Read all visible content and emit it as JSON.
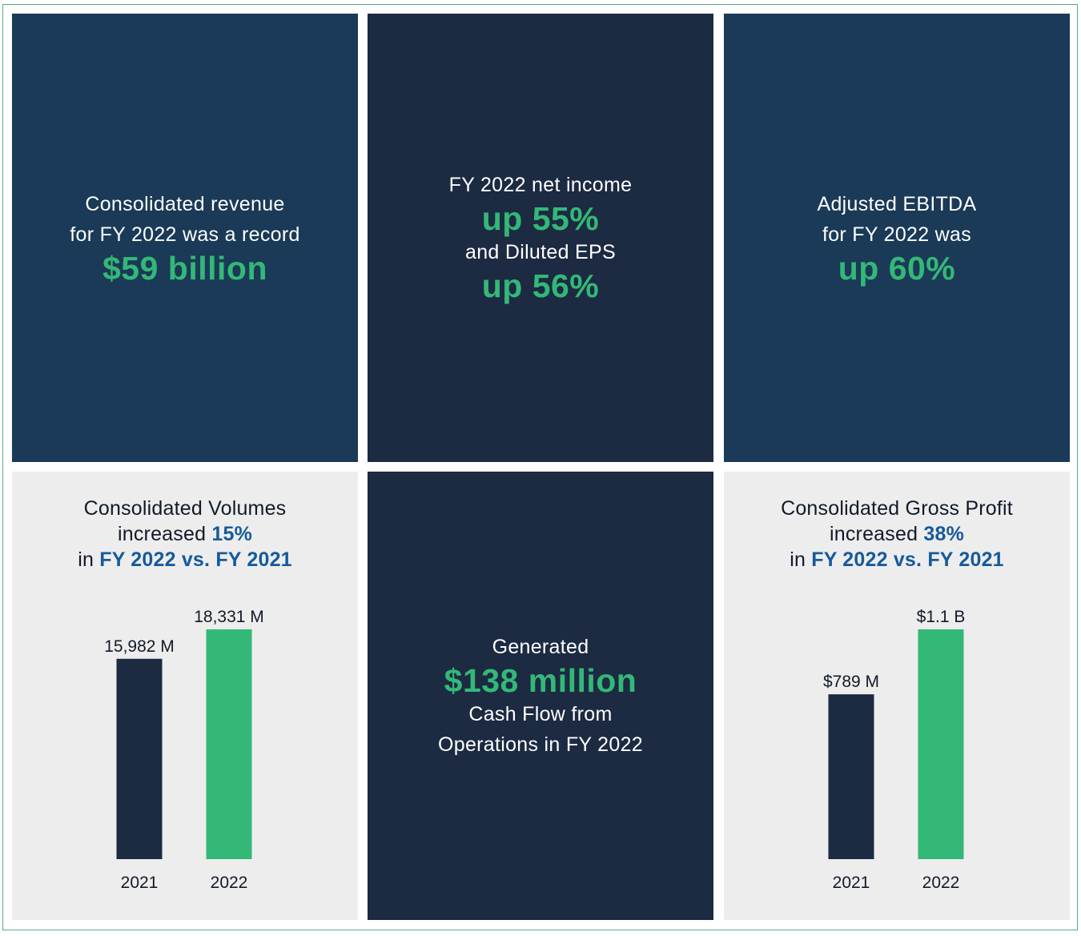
{
  "revenue": {
    "line1": "Consolidated revenue",
    "line2": "for FY 2022 was a record",
    "highlight": "$59 billion"
  },
  "net_income": {
    "line1": "FY 2022 net income",
    "highlight1": "up 55%",
    "line2": "and Diluted EPS",
    "highlight2": "up 56%"
  },
  "ebitda": {
    "line1": "Adjusted EBITDA",
    "line2": "for FY 2022 was",
    "highlight": "up 60%"
  },
  "cash_flow": {
    "line1": "Generated",
    "highlight": "$138 million",
    "line2": "Cash Flow from",
    "line3": "Operations in FY 2022"
  },
  "volumes": {
    "title": "Consolidated Volumes",
    "increased_prefix": "increased ",
    "increased_value": "15%",
    "compare_prefix": "in ",
    "compare_value": "FY 2022 vs. FY 2021"
  },
  "gross_profit": {
    "title": "Consolidated Gross Profit",
    "increased_prefix": "increased ",
    "increased_value": "38%",
    "compare_prefix": "in ",
    "compare_value": "FY 2022 vs. FY 2021"
  },
  "colors": {
    "navy": "#1a3a57",
    "dark": "#1c2a42",
    "green": "#33b877",
    "blue": "#165a9a",
    "grey": "#ededed"
  },
  "chart_data": [
    {
      "type": "bar",
      "title": "Consolidated Volumes",
      "categories": [
        "2021",
        "2022"
      ],
      "values": [
        15982,
        18331
      ],
      "value_labels": [
        "15,982 M",
        "18,331 M"
      ],
      "unit": "M",
      "colors": [
        "#1c2a42",
        "#33b877"
      ],
      "ylim": [
        0,
        18331
      ]
    },
    {
      "type": "bar",
      "title": "Consolidated Gross Profit",
      "categories": [
        "2021",
        "2022"
      ],
      "values": [
        789,
        1100
      ],
      "value_labels": [
        "$789 M",
        "$1.1 B"
      ],
      "unit": "$M",
      "colors": [
        "#1c2a42",
        "#33b877"
      ],
      "ylim": [
        0,
        1100
      ]
    }
  ]
}
